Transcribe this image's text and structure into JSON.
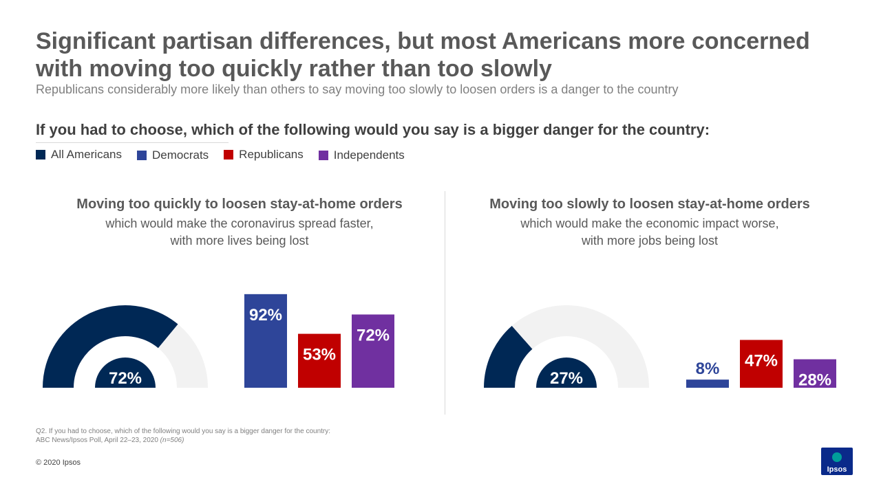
{
  "title": "Significant partisan differences, but most Americans more concerned with moving too quickly rather than too slowly",
  "subtitle": "Republicans considerably more likely than others to say moving too slowly to loosen orders is a danger to the country",
  "question": "If you had to choose, which of the following would you say is a bigger danger for the country:",
  "legend": [
    {
      "label": "All Americans",
      "color": "#002855"
    },
    {
      "label": "Democrats",
      "color": "#2e4599"
    },
    {
      "label": "Republicans",
      "color": "#c00000"
    },
    {
      "label": "Independents",
      "color": "#7030a0"
    }
  ],
  "chart_data": [
    {
      "type": "bar",
      "panel_title": "Moving too quickly to loosen stay-at-home orders",
      "panel_desc_1": "which would make the coronavirus spread faster,",
      "panel_desc_2": "with more lives being lost",
      "gauge": {
        "label": "All Americans",
        "value": 72,
        "display": "72%"
      },
      "categories": [
        "Democrats",
        "Republicans",
        "Independents"
      ],
      "values": [
        92,
        53,
        72
      ],
      "value_labels": [
        "92%",
        "53%",
        "72%"
      ],
      "ylim": [
        0,
        100
      ]
    },
    {
      "type": "bar",
      "panel_title": "Moving too slowly to loosen stay-at-home orders",
      "panel_desc_1": "which would make the economic impact worse,",
      "panel_desc_2": "with more jobs being lost",
      "gauge": {
        "label": "All Americans",
        "value": 27,
        "display": "27%"
      },
      "categories": [
        "Democrats",
        "Republicans",
        "Independents"
      ],
      "values": [
        8,
        47,
        28
      ],
      "value_labels": [
        "8%",
        "47%",
        "28%"
      ],
      "ylim": [
        0,
        100
      ]
    }
  ],
  "footnote_line1": "Q2. If you had to choose, which of the following would you say is a bigger danger for the country:",
  "footnote_line2": "ABC News/Ipsos Poll, April 22–23, 2020",
  "footnote_n": "(n=506)",
  "copyright": "© 2020 Ipsos",
  "logo_text": "Ipsos",
  "colors": {
    "gauge_bg": "#f2f2f2",
    "all": "#002855",
    "dem": "#2e4599",
    "rep": "#c00000",
    "ind": "#7030a0",
    "logo": "#0a2a8a",
    "logo_accent": "#009d9a"
  }
}
